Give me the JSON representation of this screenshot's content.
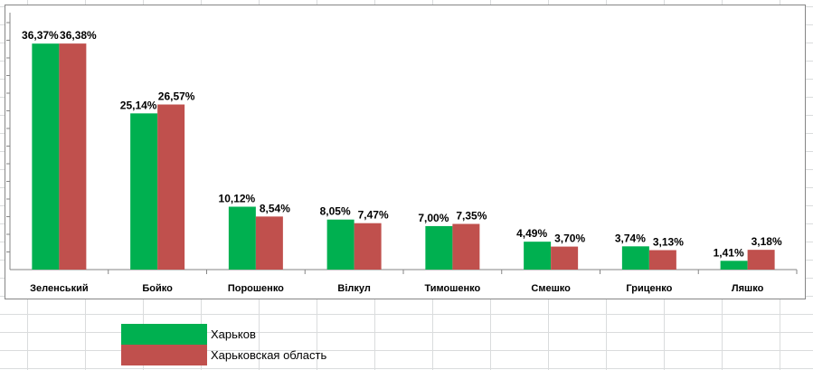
{
  "chart_data": {
    "type": "bar",
    "categories": [
      "Зеленський",
      "Бойко",
      "Порошенко",
      "Вілкул",
      "Тимошенко",
      "Смешко",
      "Гриценко",
      "Ляшко"
    ],
    "series": [
      {
        "name": "Харьков",
        "color": "#00b050",
        "values": [
          36.37,
          25.14,
          10.12,
          8.05,
          7.0,
          4.49,
          3.74,
          1.41
        ],
        "labels": [
          "36,37%",
          "25,14%",
          "10,12%",
          "8,05%",
          "7,00%",
          "4,49%",
          "3,74%",
          "1,41%"
        ]
      },
      {
        "name": "Харьковская область",
        "color": "#c0504d",
        "values": [
          36.38,
          26.57,
          8.54,
          7.47,
          7.35,
          3.7,
          3.13,
          3.18
        ],
        "labels": [
          "36,38%",
          "26,57%",
          "8,54%",
          "7,47%",
          "7,35%",
          "3,70%",
          "3,13%",
          "3,18%"
        ]
      }
    ],
    "ylim": [
      0,
      40
    ],
    "grid": false,
    "legend": "bottom-left, outside chart"
  }
}
